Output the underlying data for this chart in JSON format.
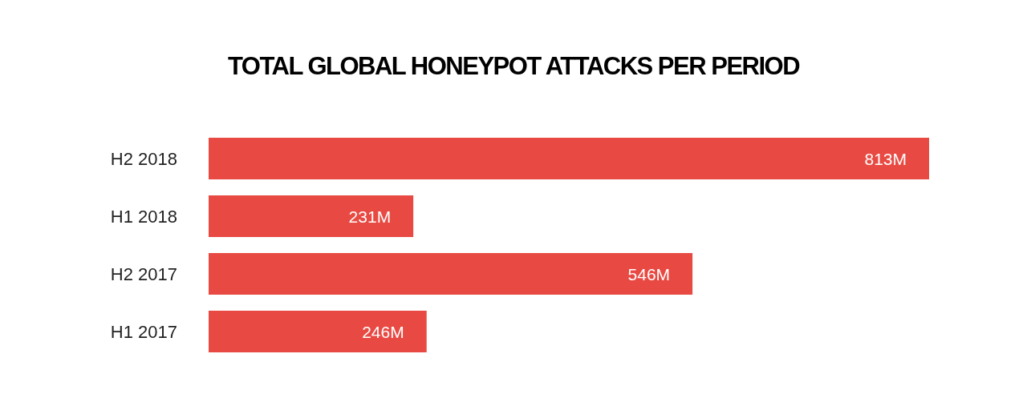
{
  "chart_data": {
    "type": "bar",
    "orientation": "horizontal",
    "title": "TOTAL GLOBAL HONEYPOT ATTACKS PER PERIOD",
    "categories": [
      "H2 2018",
      "H1 2018",
      "H2 2017",
      "H1 2017"
    ],
    "values": [
      813,
      231,
      546,
      246
    ],
    "value_labels": [
      "813M",
      "231M",
      "546M",
      "246M"
    ],
    "color": "#e84a43",
    "tick_labels": "y"
  }
}
